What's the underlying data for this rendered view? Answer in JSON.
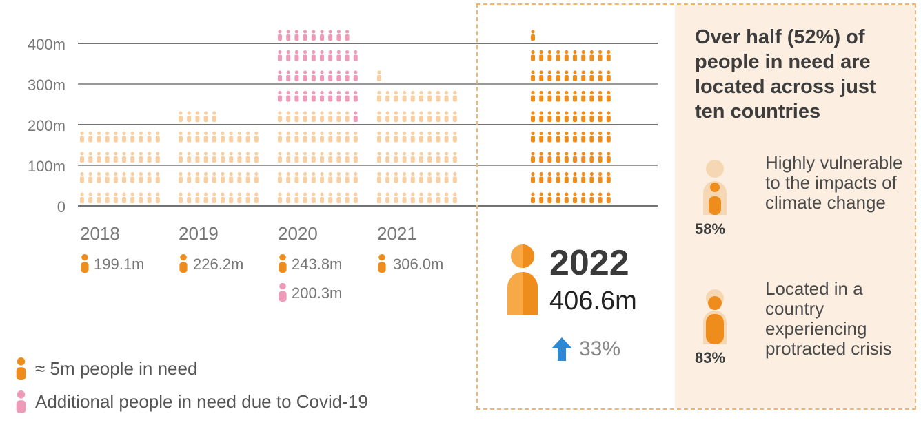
{
  "chart_data": {
    "type": "pictogram-bar",
    "unit_per_icon": 5,
    "y_ticks": [
      "0",
      "100m",
      "200m",
      "300m",
      "400m"
    ],
    "y_tick_values": [
      0,
      100,
      200,
      300,
      400
    ],
    "ylim": [
      0,
      430
    ],
    "categories": [
      "2018",
      "2019",
      "2020",
      "2021",
      "2022"
    ],
    "series": [
      {
        "name": "≈ 5m people in need",
        "values": [
          199.1,
          226.2,
          243.8,
          306.0,
          406.6
        ]
      },
      {
        "name": "Additional people in need due to Covid-19",
        "values": [
          0,
          0,
          200.3,
          0,
          0
        ]
      }
    ],
    "value_labels": {
      "2018": "199.1m",
      "2019": "226.2m",
      "2020": "243.8m",
      "2020_covid": "200.3m",
      "2021": "306.0m"
    },
    "colors": {
      "past": "#f8cfa2",
      "covid": "#ee9ab9",
      "current": "#ee8d1c",
      "current_light": "#f7a948",
      "arrow": "#2d88d6",
      "gridline": "#444444"
    }
  },
  "legend": {
    "people": "≈ 5m people in need",
    "covid": "Additional people in need due to Covid-19"
  },
  "highlight": {
    "year": "2022",
    "total": "406.6m",
    "change": "33%"
  },
  "side_panel": {
    "title": "Over half (52%) of people in need are located across just ten countries",
    "stats": [
      {
        "pct": "58%",
        "text": "Highly vulnerable to the impacts of climate change",
        "fraction": 0.58
      },
      {
        "pct": "83%",
        "text": "Located in a country experiencing protracted crisis",
        "fraction": 0.83
      }
    ]
  }
}
